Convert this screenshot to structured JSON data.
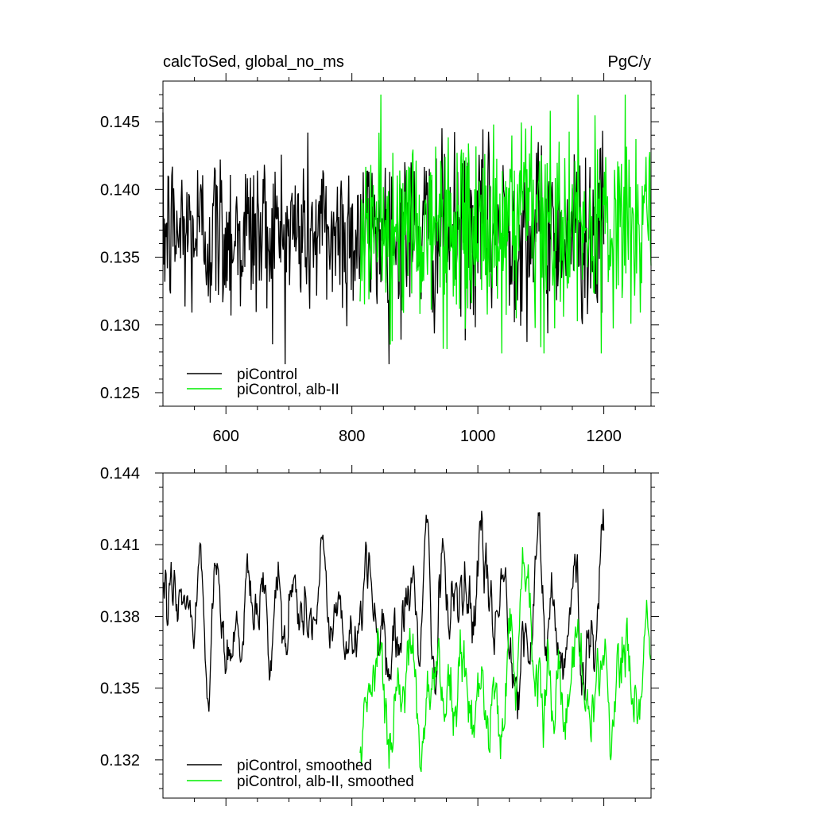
{
  "chart_data": [
    {
      "type": "line",
      "title_left": "calcToSed, global_no_ms",
      "title_right": "PgC/y",
      "xlabel": "",
      "ylabel": "",
      "xlim": [
        500,
        1275
      ],
      "ylim": [
        0.124,
        0.148
      ],
      "x_ticks": [
        600,
        800,
        1000,
        1200
      ],
      "x_tick_labels": [
        "600",
        "800",
        "1000",
        "1200"
      ],
      "y_ticks": [
        0.125,
        0.13,
        0.135,
        0.14,
        0.145
      ],
      "y_tick_labels": [
        "0.125",
        "0.130",
        "0.135",
        "0.140",
        "0.145"
      ],
      "legend_position": "bottom-left",
      "series": [
        {
          "name": "piControl",
          "color": "#000000",
          "x_range": [
            500,
            1200
          ],
          "mean": 0.1368,
          "std": 0.0032,
          "min": 0.1271,
          "max": 0.1473
        },
        {
          "name": "piControl, alb-II",
          "color": "#00ee00",
          "x_range": [
            813,
            1275
          ],
          "mean": 0.137,
          "std": 0.0035,
          "min": 0.1279,
          "max": 0.147
        }
      ]
    },
    {
      "type": "line",
      "xlabel": "",
      "ylabel": "",
      "xlim": [
        500,
        1275
      ],
      "ylim": [
        0.1304,
        0.144
      ],
      "x_ticks": [
        600,
        800,
        1000,
        1200
      ],
      "y_ticks": [
        0.132,
        0.135,
        0.138,
        0.141,
        0.144
      ],
      "y_tick_labels": [
        "0.132",
        "0.135",
        "0.138",
        "0.141",
        "0.144"
      ],
      "legend_position": "bottom-left",
      "series": [
        {
          "name": "piControl, smoothed",
          "color": "#000000",
          "x_range": [
            500,
            1200
          ],
          "mean": 0.1368,
          "min": 0.1337,
          "max": 0.1425
        },
        {
          "name": "piControl, alb-II, smoothed",
          "color": "#00ee00",
          "x_range": [
            813,
            1275
          ],
          "mean": 0.1369,
          "min": 0.1315,
          "max": 0.1409
        }
      ]
    }
  ]
}
